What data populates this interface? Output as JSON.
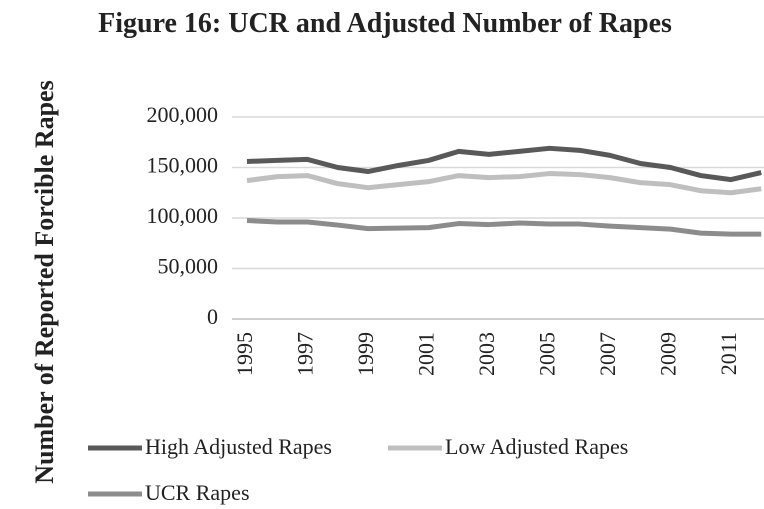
{
  "chart_data": {
    "type": "line",
    "title": "Figure 16: UCR and Adjusted Number of Rapes",
    "y_label": "Number of Reported Forcible Rapes",
    "categories": [
      "1995",
      null,
      "1997",
      null,
      "1999",
      null,
      "2001",
      null,
      "2003",
      null,
      "2005",
      null,
      "2007",
      null,
      "2009",
      null,
      "2011",
      null
    ],
    "series": [
      {
        "name": "High Adjusted Rapes",
        "color": "#595959",
        "values": [
          156000,
          157000,
          158000,
          150000,
          146000,
          152000,
          157000,
          166000,
          163000,
          166000,
          169000,
          167000,
          162000,
          154000,
          150000,
          142000,
          138000,
          145000
        ]
      },
      {
        "name": "Low Adjusted Rapes",
        "color": "#bfbfbf",
        "values": [
          137000,
          141000,
          142000,
          134000,
          130000,
          133000,
          136000,
          142000,
          140000,
          141000,
          144000,
          143000,
          140000,
          135000,
          133000,
          127000,
          125000,
          129000
        ]
      },
      {
        "name": "UCR Rapes",
        "color": "#8c8c8c",
        "values": [
          97500,
          96000,
          96000,
          93000,
          89500,
          90000,
          90500,
          94500,
          93500,
          95000,
          94000,
          94000,
          92000,
          90500,
          89000,
          85000,
          84000,
          84000
        ]
      }
    ],
    "ylim": [
      0,
      200000
    ],
    "yticks": [
      0,
      {
        "value": 50000,
        "label": "50,000"
      },
      {
        "value": 100000,
        "label": "100,000"
      },
      {
        "value": 150000,
        "label": "150,000"
      },
      {
        "value": 200000,
        "label": "200,000"
      }
    ],
    "grid": true,
    "legend": "bottom"
  }
}
